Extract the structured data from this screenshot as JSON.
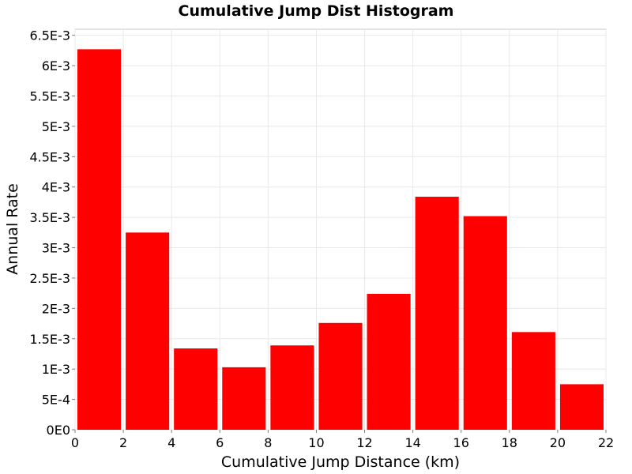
{
  "chart_data": {
    "type": "bar",
    "title": "Cumulative Jump Dist Histogram",
    "xlabel": "Cumulative Jump Distance (km)",
    "ylabel": "Annual Rate",
    "xlim": [
      0,
      22
    ],
    "ylim": [
      0,
      0.0066
    ],
    "x_ticks": [
      0,
      2,
      4,
      6,
      8,
      10,
      12,
      14,
      16,
      18,
      20,
      22
    ],
    "x_tick_labels": [
      "0",
      "2",
      "4",
      "6",
      "8",
      "10",
      "12",
      "14",
      "16",
      "18",
      "20",
      "22"
    ],
    "y_ticks": [
      0,
      0.0005,
      0.001,
      0.0015,
      0.002,
      0.0025,
      0.003,
      0.0035,
      0.004,
      0.0045,
      0.005,
      0.0055,
      0.006,
      0.0065
    ],
    "y_tick_labels": [
      "0E0",
      "5E-4",
      "1E-3",
      "1.5E-3",
      "2E-3",
      "2.5E-3",
      "3E-3",
      "3.5E-3",
      "4E-3",
      "4.5E-3",
      "5E-3",
      "5.5E-3",
      "6E-3",
      "6.5E-3"
    ],
    "bin_width": 2,
    "bins": [
      {
        "x": 1,
        "value": 0.00627
      },
      {
        "x": 3,
        "value": 0.00325
      },
      {
        "x": 5,
        "value": 0.00134
      },
      {
        "x": 7,
        "value": 0.00103
      },
      {
        "x": 9,
        "value": 0.00139
      },
      {
        "x": 11,
        "value": 0.00176
      },
      {
        "x": 13,
        "value": 0.00224
      },
      {
        "x": 15,
        "value": 0.00384
      },
      {
        "x": 17,
        "value": 0.00352
      },
      {
        "x": 19,
        "value": 0.00161
      },
      {
        "x": 21,
        "value": 0.00075
      }
    ],
    "bar_color": "#ff0000",
    "grid": true,
    "legend": false
  }
}
